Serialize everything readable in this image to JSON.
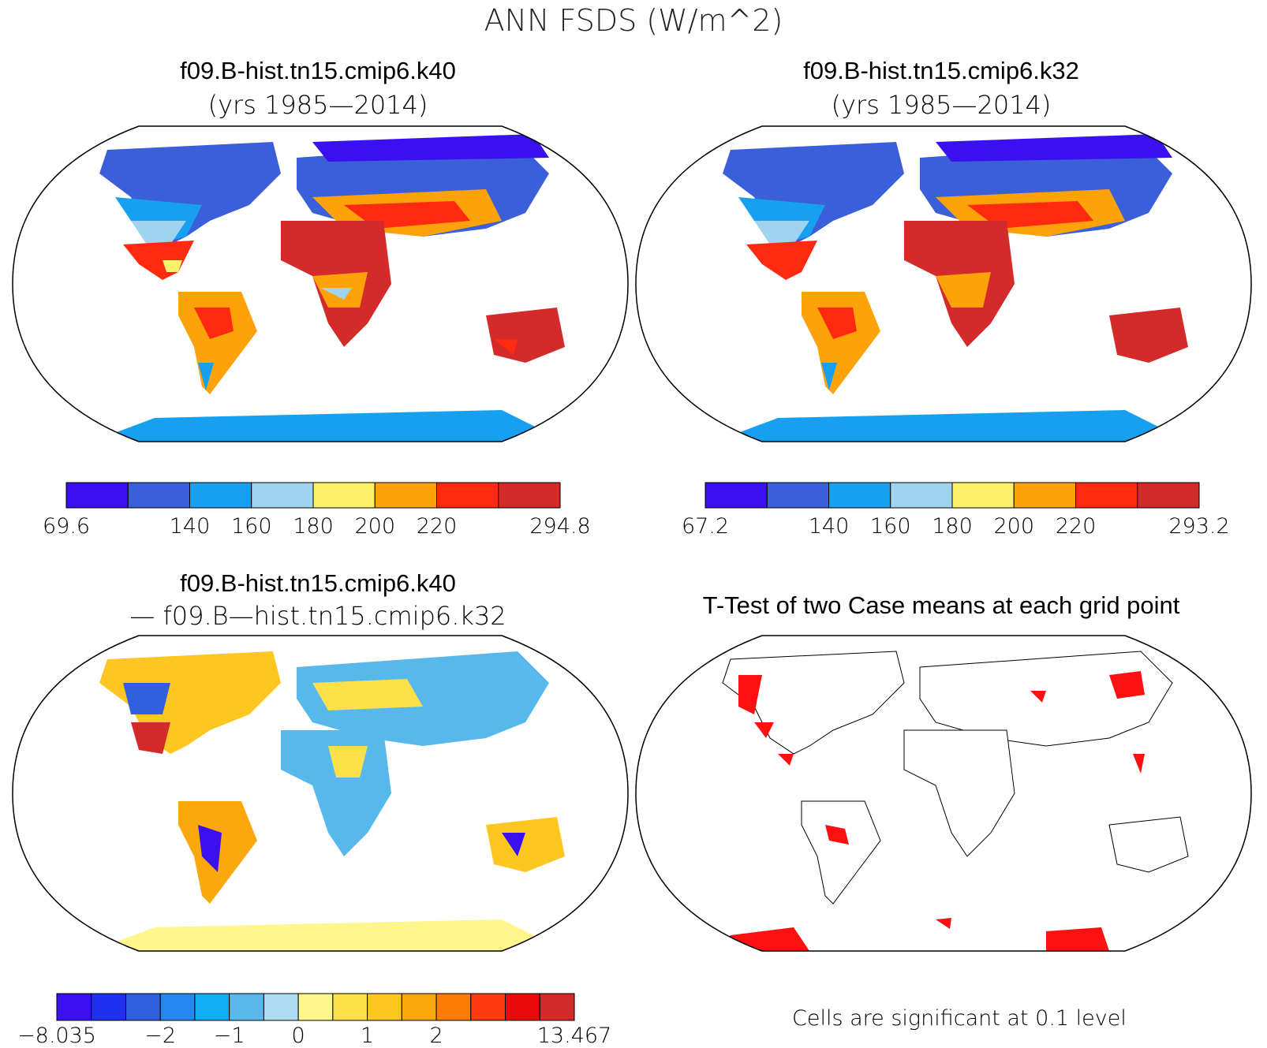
{
  "title": "ANN FSDS (W/m^2)",
  "panels": [
    {
      "id": "k40",
      "title": "f09.B-hist.tn15.cmip6.k40",
      "subtitle": "(yrs 1985—2014)"
    },
    {
      "id": "k32",
      "title": "f09.B-hist.tn15.cmip6.k32",
      "subtitle": "(yrs 1985—2014)"
    },
    {
      "id": "diff",
      "title": "f09.B-hist.tn15.cmip6.k40",
      "subtitle": "— f09.B—hist.tn15.cmip6.k32"
    },
    {
      "id": "ttest",
      "title": "T-Test of two Case means at each grid point",
      "subtitle": ""
    }
  ],
  "colorbars": [
    {
      "colors": [
        "#3a10f0",
        "#3b5fd9",
        "#17a0f0",
        "#9fd3ee",
        "#fdf06a",
        "#fda309",
        "#ff2a10",
        "#d42a2a"
      ],
      "labels": [
        "69.6",
        "",
        "140",
        "160",
        "180",
        "200",
        "220",
        "",
        "294.8"
      ]
    },
    {
      "colors": [
        "#3a10f0",
        "#3b5fd9",
        "#17a0f0",
        "#9fd3ee",
        "#fdf06a",
        "#fda309",
        "#ff2a10",
        "#d42a2a"
      ],
      "labels": [
        "67.2",
        "",
        "140",
        "160",
        "180",
        "200",
        "220",
        "",
        "293.2"
      ]
    },
    {
      "colors": [
        "#3a10f0",
        "#2030f0",
        "#3060e0",
        "#2488f0",
        "#10aef2",
        "#57b8ec",
        "#aedcf0",
        "#fff68c",
        "#fde04a",
        "#fdc621",
        "#fba80e",
        "#fd7c08",
        "#ff3b10",
        "#e80b0b",
        "#d42a2a"
      ],
      "labels": [
        "−8.035",
        "",
        "",
        "−2",
        "",
        "−1",
        "",
        "0",
        "",
        "1",
        "",
        "2",
        "",
        "",
        "",
        "13.467"
      ]
    }
  ],
  "note": "Cells are significant at 0.1 level"
}
